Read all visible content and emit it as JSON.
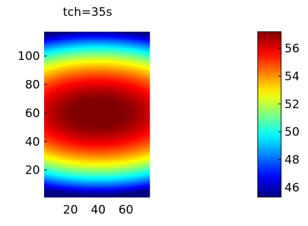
{
  "chart_data": [
    {
      "type": "heatmap",
      "title": "tch=35s",
      "xlabel": "",
      "ylabel": "",
      "xlim": [
        1,
        77
      ],
      "ylim": [
        1,
        117
      ],
      "x_ticks": [
        20,
        40,
        60
      ],
      "y_ticks": [
        20,
        40,
        60,
        80,
        100
      ],
      "colormap": "jet",
      "field": {
        "description_values": "value at image center ~57.5, decreasing toward top and bottom edges to ~45.5; slight decrease toward left/right edges",
        "center": [
          40,
          60
        ],
        "max": 57.5,
        "min_edge": 45.5
      }
    },
    {
      "type": "colorbar",
      "clim": [
        45.3,
        57.2
      ],
      "ticks": [
        46,
        48,
        50,
        52,
        54,
        56
      ],
      "orientation": "vertical"
    }
  ]
}
